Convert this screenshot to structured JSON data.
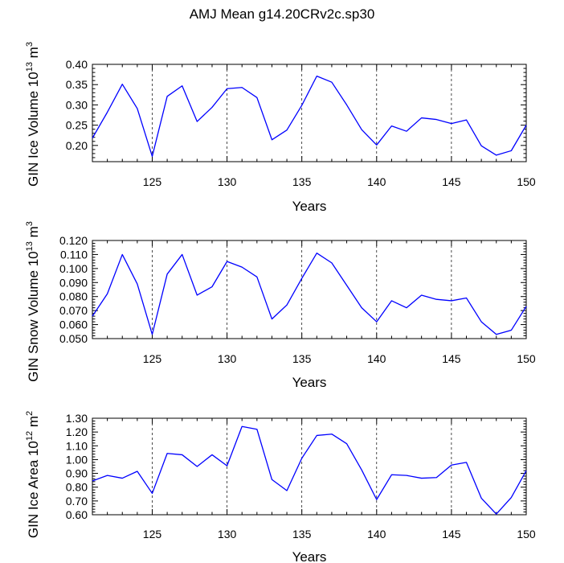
{
  "title": "AMJ Mean g14.20CRv2c.sp30",
  "chart_data": [
    {
      "type": "line",
      "title": "AMJ Mean g14.20CRv2c.sp30",
      "xlabel": "Years",
      "ylabel": "GIN Ice Volume",
      "ylabel_unit": {
        "base": "10",
        "exp": "13",
        "unit": "m",
        "unit_exp": "3"
      },
      "xlim": [
        121,
        150
      ],
      "ylim": [
        0.16,
        0.4
      ],
      "x_ticks": [
        "125",
        "130",
        "135",
        "140",
        "145",
        "150"
      ],
      "y_ticks": [
        "0.20",
        "0.25",
        "0.30",
        "0.35",
        "0.40"
      ],
      "x": [
        121,
        122,
        123,
        124,
        125,
        126,
        127,
        128,
        129,
        130,
        131,
        132,
        133,
        134,
        135,
        136,
        137,
        138,
        139,
        140,
        141,
        142,
        143,
        144,
        145,
        146,
        147,
        148,
        149,
        150
      ],
      "series": [
        {
          "name": "GIN Ice Volume",
          "color": "#0000ff",
          "values": [
            0.218,
            0.282,
            0.351,
            0.291,
            0.173,
            0.321,
            0.347,
            0.259,
            0.294,
            0.34,
            0.343,
            0.318,
            0.214,
            0.238,
            0.299,
            0.371,
            0.356,
            0.3,
            0.239,
            0.201,
            0.248,
            0.235,
            0.268,
            0.264,
            0.254,
            0.263,
            0.199,
            0.176,
            0.187,
            0.25
          ]
        }
      ]
    },
    {
      "type": "line",
      "xlabel": "Years",
      "ylabel": "GIN Snow Volume",
      "ylabel_unit": {
        "base": "10",
        "exp": "13",
        "unit": "m",
        "unit_exp": "3"
      },
      "xlim": [
        121,
        150
      ],
      "ylim": [
        0.05,
        0.12
      ],
      "x_ticks": [
        "125",
        "130",
        "135",
        "140",
        "145",
        "150"
      ],
      "y_ticks": [
        "0.050",
        "0.060",
        "0.070",
        "0.080",
        "0.090",
        "0.100",
        "0.110",
        "0.120"
      ],
      "x": [
        121,
        122,
        123,
        124,
        125,
        126,
        127,
        128,
        129,
        130,
        131,
        132,
        133,
        134,
        135,
        136,
        137,
        138,
        139,
        140,
        141,
        142,
        143,
        144,
        145,
        146,
        147,
        148,
        149,
        150
      ],
      "series": [
        {
          "name": "GIN Snow Volume",
          "color": "#0000ff",
          "values": [
            0.066,
            0.082,
            0.11,
            0.089,
            0.053,
            0.096,
            0.11,
            0.081,
            0.087,
            0.105,
            0.101,
            0.094,
            0.064,
            0.074,
            0.093,
            0.111,
            0.104,
            0.088,
            0.072,
            0.062,
            0.077,
            0.072,
            0.081,
            0.078,
            0.077,
            0.079,
            0.062,
            0.053,
            0.056,
            0.073
          ]
        }
      ]
    },
    {
      "type": "line",
      "xlabel": "Years",
      "ylabel": "GIN Ice Area",
      "ylabel_unit": {
        "base": "10",
        "exp": "12",
        "unit": "m",
        "unit_exp": "2"
      },
      "xlim": [
        121,
        150
      ],
      "ylim": [
        0.6,
        1.3
      ],
      "x_ticks": [
        "125",
        "130",
        "135",
        "140",
        "145",
        "150"
      ],
      "y_ticks": [
        "0.60",
        "0.70",
        "0.80",
        "0.90",
        "1.00",
        "1.10",
        "1.20",
        "1.30"
      ],
      "x": [
        121,
        122,
        123,
        124,
        125,
        126,
        127,
        128,
        129,
        130,
        131,
        132,
        133,
        134,
        135,
        136,
        137,
        138,
        139,
        140,
        141,
        142,
        143,
        144,
        145,
        146,
        147,
        148,
        149,
        150
      ],
      "series": [
        {
          "name": "GIN Ice Area",
          "color": "#0000ff",
          "values": [
            0.845,
            0.885,
            0.865,
            0.915,
            0.755,
            1.045,
            1.035,
            0.95,
            1.035,
            0.955,
            1.24,
            1.22,
            0.855,
            0.775,
            1.01,
            1.175,
            1.185,
            1.115,
            0.925,
            0.71,
            0.89,
            0.885,
            0.865,
            0.87,
            0.96,
            0.98,
            0.72,
            0.605,
            0.725,
            0.92
          ]
        }
      ]
    }
  ]
}
